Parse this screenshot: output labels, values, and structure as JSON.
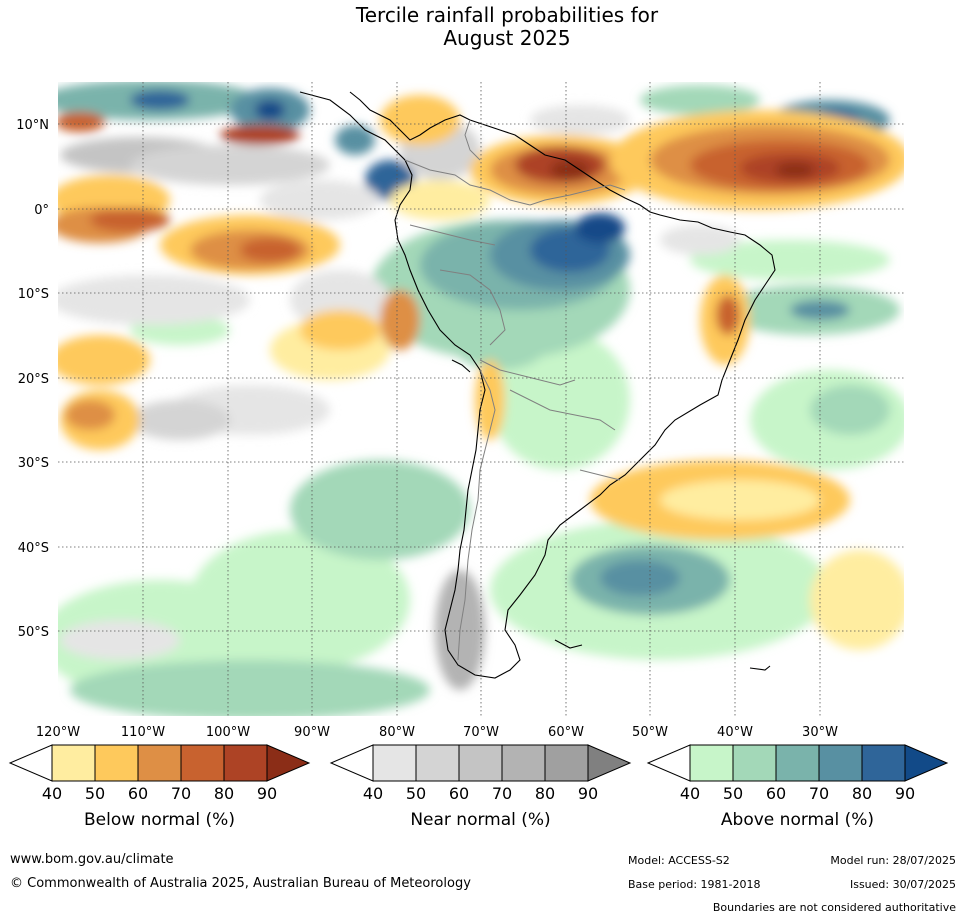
{
  "title": {
    "line1": "Tercile rainfall probabilities for",
    "line2": "August 2025"
  },
  "map": {
    "lat_labels": [
      "10°N",
      "0°",
      "10°S",
      "20°S",
      "30°S",
      "40°S",
      "50°S"
    ],
    "lon_labels": [
      "120°W",
      "110°W",
      "100°W",
      "90°W",
      "80°W",
      "70°W",
      "60°W",
      "50°W",
      "40°W",
      "30°W"
    ],
    "grid_color": "#555555",
    "coast_color": "#000000",
    "border_color": "#808080"
  },
  "legends": [
    {
      "label": "Below normal (%)",
      "ticks": [
        "40",
        "50",
        "60",
        "70",
        "80",
        "90"
      ],
      "colors": [
        "#ffffff",
        "#ffeda0",
        "#fec95c",
        "#de8f45",
        "#c8622f",
        "#ad4325",
        "#8b2d17"
      ]
    },
    {
      "label": "Near normal (%)",
      "ticks": [
        "40",
        "50",
        "60",
        "70",
        "80",
        "90"
      ],
      "colors": [
        "#ffffff",
        "#e5e5e5",
        "#d4d4d4",
        "#c4c4c4",
        "#b3b3b3",
        "#a0a0a0",
        "#808080"
      ]
    },
    {
      "label": "Above normal (%)",
      "ticks": [
        "40",
        "50",
        "60",
        "70",
        "80",
        "90"
      ],
      "colors": [
        "#ffffff",
        "#c7f5c9",
        "#a3d8b8",
        "#7ab3ab",
        "#5890a2",
        "#2f6599",
        "#124a88"
      ]
    }
  ],
  "footer": {
    "website": "www.bom.gov.au/climate",
    "copyright": "© Commonwealth of Australia 2025, Australian Bureau of Meteorology",
    "model": "Model: ACCESS-S2",
    "base_period": "Base period: 1981-2018",
    "model_run": "Model run: 28/07/2025",
    "issued": "Issued: 30/07/2025",
    "disclaimer": "Boundaries are not considered authoritative"
  }
}
